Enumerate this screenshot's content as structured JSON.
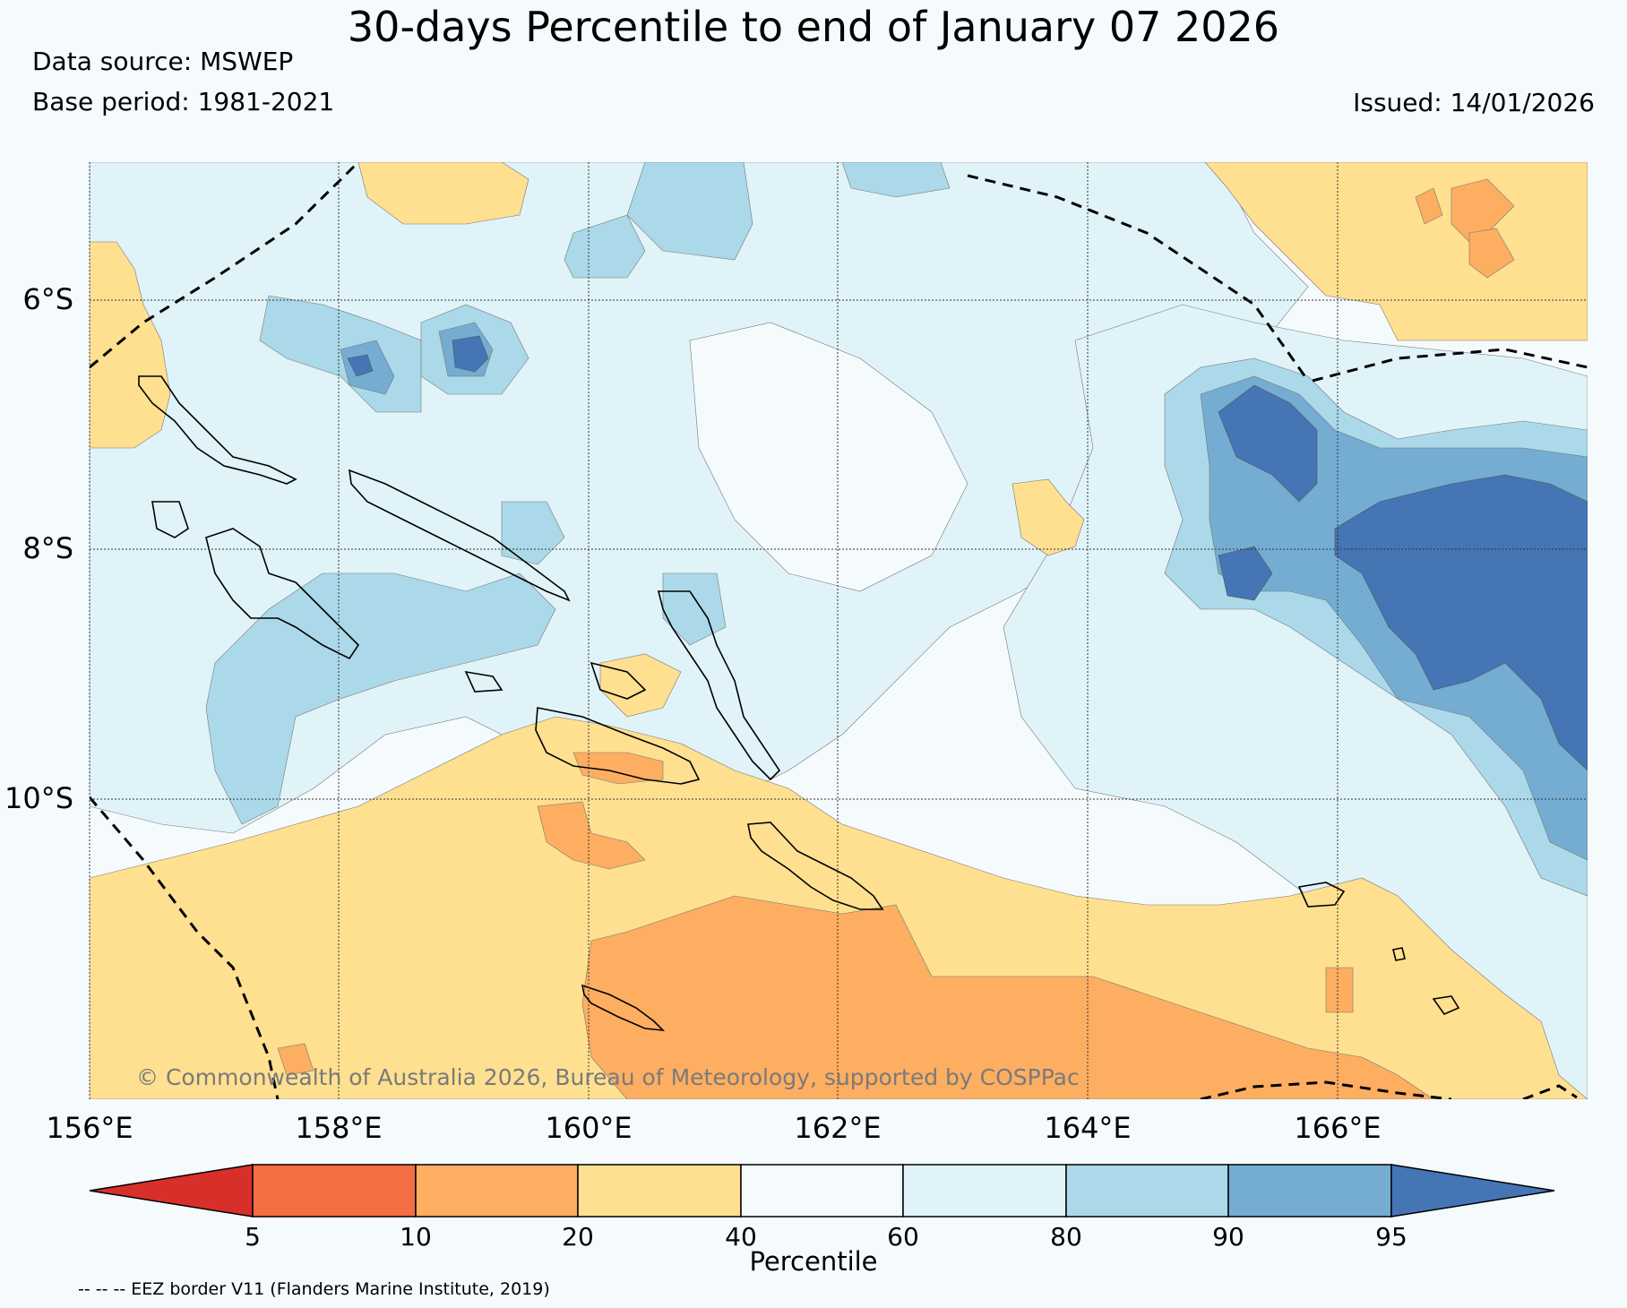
{
  "header": {
    "title": "30-days Percentile to end of January 07 2026",
    "data_source": "Data source: MSWEP",
    "base_period": "Base period: 1981-2021",
    "issued": "Issued: 14/01/2026"
  },
  "map": {
    "lat_labels": [
      "6°S",
      "8°S",
      "10°S"
    ],
    "lon_labels": [
      "156°E",
      "158°E",
      "160°E",
      "162°E",
      "164°E",
      "166°E"
    ],
    "copyright": "© Commonwealth of Australia 2026, Bureau of Meteorology, supported by COSPPac"
  },
  "colorbar": {
    "title": "Percentile",
    "ticks": [
      "5",
      "10",
      "20",
      "40",
      "60",
      "80",
      "90",
      "95"
    ],
    "colors": [
      "#d7302a",
      "#f46d43",
      "#fdae61",
      "#fee090",
      "#f5fafd",
      "#e0f3f8",
      "#abd9e9",
      "#74add1",
      "#4575b4"
    ]
  },
  "footnote": "-- -- -- EEZ border V11 (Flanders Marine Institute, 2019)"
}
